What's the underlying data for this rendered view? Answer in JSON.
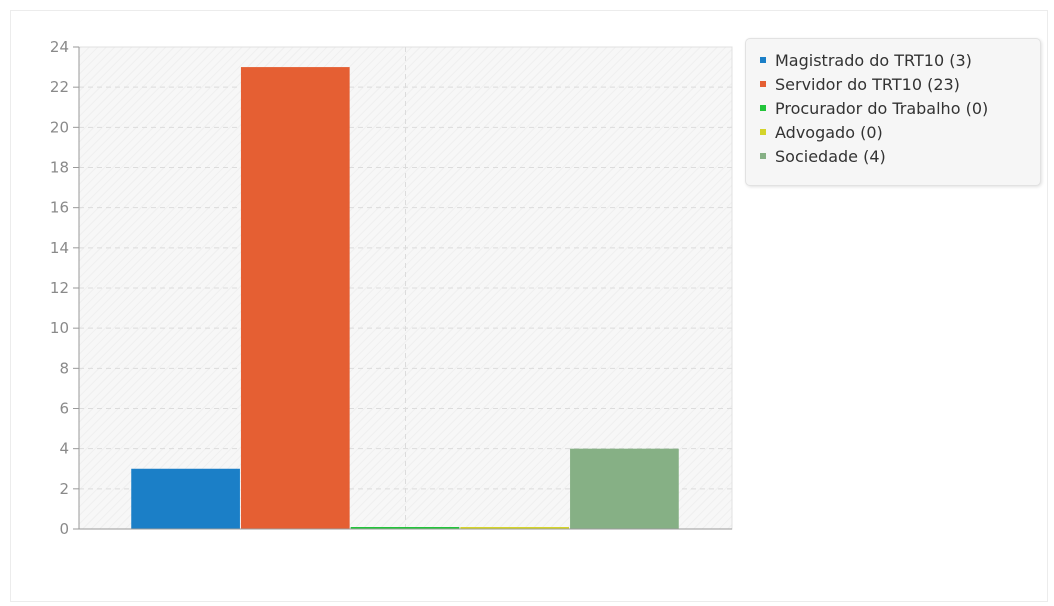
{
  "chart_data": {
    "type": "bar",
    "categories": [
      ""
    ],
    "series": [
      {
        "name": "Magistrado do TRT10 (3)",
        "values": [
          3
        ],
        "color": "#1b7fc7"
      },
      {
        "name": "Servidor do TRT10 (23)",
        "values": [
          23
        ],
        "color": "#e55f33"
      },
      {
        "name": "Procurador do Trabalho (0)",
        "values": [
          0
        ],
        "color": "#22c43a"
      },
      {
        "name": "Advogado (0)",
        "values": [
          0
        ],
        "color": "#d4d42a"
      },
      {
        "name": "Sociedade (4)",
        "values": [
          4
        ],
        "color": "#86b085"
      }
    ],
    "ylim": [
      0,
      24
    ],
    "yticks": [
      0,
      2,
      4,
      6,
      8,
      10,
      12,
      14,
      16,
      18,
      20,
      22,
      24
    ],
    "grid": true,
    "legend_position": "top-right",
    "title": "",
    "xlabel": "",
    "ylabel": ""
  }
}
